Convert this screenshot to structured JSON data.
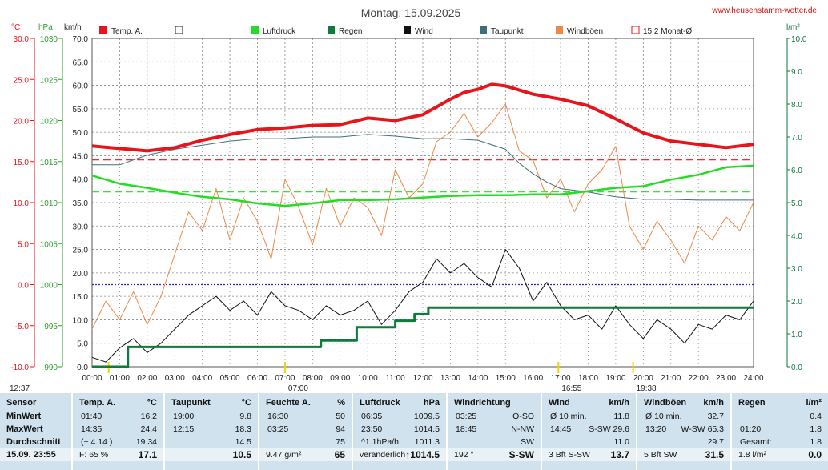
{
  "header": {
    "title": "Montag, 15.09.2025",
    "website": "www.heusenstamm-wetter.de"
  },
  "axes": {
    "temp_unit": "°C",
    "pressure_unit": "hPa",
    "speed_unit": "km/h",
    "rain_unit": "l/m²",
    "temp_ticks": [
      "30.0",
      "25.0",
      "20.0",
      "15.0",
      "10.0",
      "5.0",
      "0.0",
      "-5.0",
      "-10.0"
    ],
    "pressure_ticks": [
      "1030",
      "1025",
      "1020",
      "1015",
      "1010",
      "1005",
      "1000",
      "995",
      "990"
    ],
    "speed_ticks": [
      "70.0",
      "65.0",
      "60.0",
      "55.0",
      "50.0",
      "45.0",
      "40.0",
      "35.0",
      "30.0",
      "25.0",
      "20.0",
      "15.0",
      "10.0",
      "5.0",
      "0.0"
    ],
    "rain_ticks": [
      "10.0",
      "9.0",
      "8.0",
      "7.0",
      "6.0",
      "5.0",
      "4.0",
      "3.0",
      "2.0",
      "1.0",
      "0.0"
    ],
    "time_ticks": [
      "00:00",
      "01:00",
      "02:00",
      "03:00",
      "04:00",
      "05:00",
      "06:00",
      "07:00",
      "08:00",
      "09:00",
      "10:00",
      "11:00",
      "12:00",
      "13:00",
      "14:00",
      "15:00",
      "16:00",
      "17:00",
      "18:00",
      "19:00",
      "20:00",
      "21:00",
      "22:00",
      "23:00",
      "24:00"
    ],
    "markers": [
      {
        "label": "12:37",
        "time": 0.6
      },
      {
        "label": "07:00",
        "time": 7.0
      },
      {
        "label": "16:55",
        "time": 16.92
      },
      {
        "label": "19:38",
        "time": 19.63
      }
    ]
  },
  "legend": {
    "temp": "Temp. A.",
    "box": "",
    "pressure": "Luftdruck",
    "rain": "Regen",
    "wind": "Wind",
    "dew": "Taupunkt",
    "gust": "Windböen",
    "monthavg": "15.2 Monat-Ø"
  },
  "colors": {
    "temp": "#e8141c",
    "pressure": "#22dd22",
    "rain": "#0e7a3c",
    "wind": "#111111",
    "dew": "#3d6e7a",
    "gust": "#ee8844",
    "grid": "#8a8a8a",
    "zero": "#2a2ab0",
    "temp_axis": "#e8141c",
    "pressure_axis": "#2aa02a",
    "rain_axis": "#0e7a3c"
  },
  "chart_data": {
    "type": "line",
    "title": "Montag, 15.09.2025",
    "x_unit": "hour",
    "temp_range": [
      -10,
      30
    ],
    "pressure_range": [
      990,
      1030
    ],
    "speed_range": [
      0,
      70
    ],
    "rain_range": [
      0,
      10
    ],
    "reference_lines": [
      {
        "name": "15.2 Monat-Ø",
        "axis": "temp",
        "value": 15.2
      },
      {
        "axis": "pressure",
        "value": 1011.3
      },
      {
        "axis": "temp",
        "value": 0.0
      }
    ],
    "series": [
      {
        "name": "Temp. A.",
        "axis": "temp",
        "x": [
          0,
          1,
          2,
          3,
          4,
          5,
          6,
          7,
          8,
          9,
          10,
          11,
          12,
          13,
          13.5,
          14,
          14.5,
          15,
          15.5,
          16,
          17,
          18,
          19,
          20,
          21,
          22,
          23,
          24
        ],
        "y": [
          16.9,
          16.6,
          16.3,
          16.7,
          17.6,
          18.3,
          18.9,
          19.1,
          19.4,
          19.5,
          20.3,
          20.0,
          20.7,
          22.6,
          23.4,
          23.8,
          24.4,
          24.2,
          23.7,
          23.2,
          22.6,
          21.8,
          20.2,
          18.5,
          17.5,
          17.1,
          16.7,
          17.1
        ]
      },
      {
        "name": "Taupunkt",
        "axis": "temp",
        "x": [
          0,
          1,
          2,
          3,
          4,
          5,
          6,
          7,
          8,
          9,
          10,
          11,
          12,
          13,
          14,
          15,
          15.5,
          16,
          16.5,
          17,
          18,
          19,
          20,
          21,
          22,
          23,
          24
        ],
        "y": [
          14.6,
          14.6,
          15.8,
          16.5,
          17.0,
          17.5,
          17.8,
          17.8,
          18.0,
          18.0,
          18.3,
          18.1,
          17.8,
          17.8,
          17.6,
          16.5,
          14.8,
          13.5,
          12.5,
          11.7,
          11.3,
          10.7,
          10.4,
          10.4,
          10.3,
          10.3,
          10.3
        ]
      },
      {
        "name": "Luftdruck",
        "axis": "pressure",
        "x": [
          0,
          1,
          2,
          3,
          4,
          5,
          6,
          7,
          8,
          9,
          10,
          11,
          12,
          13,
          14,
          15,
          16,
          17,
          18,
          19,
          20,
          21,
          22,
          23,
          24
        ],
        "y": [
          1013.3,
          1012.3,
          1011.8,
          1011.2,
          1010.7,
          1010.4,
          1009.9,
          1009.6,
          1009.9,
          1010.3,
          1010.3,
          1010.4,
          1010.6,
          1010.8,
          1010.9,
          1010.9,
          1011.0,
          1011.0,
          1011.4,
          1011.8,
          1012.0,
          1012.8,
          1013.4,
          1014.3,
          1014.5
        ]
      },
      {
        "name": "Regen",
        "axis": "rain",
        "x": [
          0,
          1.05,
          1.3,
          3.7,
          7.8,
          8.3,
          9.6,
          11,
          11.6,
          11.7,
          12.2,
          24
        ],
        "y": [
          0,
          0,
          0.6,
          0.6,
          0.6,
          0.8,
          1.2,
          1.4,
          1.4,
          1.6,
          1.8,
          1.8
        ]
      },
      {
        "name": "Wind",
        "axis": "speed",
        "x": [
          0,
          0.5,
          1,
          1.5,
          2,
          2.5,
          3,
          3.5,
          4,
          4.5,
          5,
          5.5,
          6,
          6.5,
          7,
          7.5,
          8,
          8.5,
          9,
          9.5,
          10,
          10.5,
          11,
          11.5,
          12,
          12.5,
          13,
          13.5,
          14,
          14.5,
          15,
          15.5,
          16,
          16.5,
          17,
          17.5,
          18,
          18.5,
          19,
          19.5,
          20,
          20.5,
          21,
          21.5,
          22,
          22.5,
          23,
          23.5,
          24
        ],
        "y": [
          2,
          1,
          4,
          6,
          3,
          5,
          8,
          11,
          13,
          15,
          12,
          14,
          11,
          16,
          13,
          12,
          10,
          13,
          11,
          12,
          14,
          9,
          12,
          16,
          18,
          23,
          20,
          22,
          19,
          17,
          25,
          21,
          14,
          18,
          13,
          10,
          11,
          8,
          13,
          9,
          6,
          10,
          8,
          5,
          9,
          8,
          11,
          10,
          14
        ]
      },
      {
        "name": "Windböen",
        "axis": "speed",
        "x": [
          0,
          0.5,
          1,
          1.5,
          2,
          2.5,
          3,
          3.5,
          4,
          4.5,
          5,
          5.5,
          6,
          6.5,
          7,
          7.5,
          8,
          8.5,
          9,
          9.5,
          10,
          10.5,
          11,
          11.5,
          12,
          12.5,
          13,
          13.5,
          14,
          14.5,
          15,
          15.5,
          16,
          16.5,
          17,
          17.5,
          18,
          18.5,
          19,
          19.5,
          20,
          20.5,
          21,
          21.5,
          22,
          22.5,
          23,
          23.5,
          24
        ],
        "y": [
          8,
          14,
          10,
          16,
          9,
          15,
          24,
          33,
          29,
          38,
          27,
          36,
          31,
          23,
          40,
          34,
          26,
          38,
          30,
          36,
          34,
          28,
          42,
          36,
          39,
          48,
          50,
          54,
          49,
          52,
          56,
          46,
          44,
          36,
          40,
          33,
          39,
          42,
          47,
          30,
          25,
          31,
          27,
          22,
          30,
          27,
          32,
          29,
          35
        ]
      }
    ]
  },
  "panel": {
    "sensor": {
      "header": "Sensor",
      "rows": [
        "MinWert",
        "MaxWert",
        "Durchschnitt",
        "15.09. 23:55"
      ]
    },
    "temp": {
      "header": "Temp. A.",
      "unit": "°C",
      "rows": [
        [
          "01:40",
          "16.2"
        ],
        [
          "14:35",
          "24.4"
        ],
        [
          "(+ 4.14 )",
          "19.34"
        ],
        [
          "F: 65 %",
          "17.1"
        ]
      ]
    },
    "dew": {
      "header": "Taupunkt",
      "unit": "°C",
      "rows": [
        [
          "19:00",
          "9.8"
        ],
        [
          "12:15",
          "18.3"
        ],
        [
          "",
          "14.5"
        ],
        [
          "",
          "10.5"
        ]
      ]
    },
    "humidity": {
      "header": "Feuchte A.",
      "unit": "%",
      "rows": [
        [
          "16:30",
          "50"
        ],
        [
          "03:25",
          "94"
        ],
        [
          "",
          "75"
        ],
        [
          "9.47 g/m²",
          "65"
        ]
      ]
    },
    "pressure": {
      "header": "Luftdruck",
      "unit": "hPa",
      "rows": [
        [
          "06:35",
          "1009.5"
        ],
        [
          "23:50",
          "1014.5"
        ],
        [
          "^1.1hPa/h",
          "1011.3"
        ],
        [
          "veränderlich",
          "↑1014.5"
        ]
      ]
    },
    "direction": {
      "header": "Windrichtung",
      "unit": "",
      "rows": [
        [
          "03:25",
          "O-SO"
        ],
        [
          "18:45",
          "N-NW"
        ],
        [
          "",
          "SW"
        ],
        [
          "192 °",
          "S-SW"
        ]
      ]
    },
    "wind": {
      "header": "Wind",
      "unit": "km/h",
      "rows": [
        [
          "Ø 10 min.",
          "11.8"
        ],
        [
          "14:45",
          "S-SW 29.6"
        ],
        [
          "",
          "11.0"
        ],
        [
          "3 Bft S-SW",
          "13.7"
        ]
      ]
    },
    "gust": {
      "header": "Windböen",
      "unit": "km/h",
      "rows": [
        [
          "Ø 10 min.",
          "32.7"
        ],
        [
          "13:20",
          "W-SW 65.3"
        ],
        [
          "",
          "29.7"
        ],
        [
          "5 Bft SW",
          "31.5"
        ]
      ]
    },
    "rain": {
      "header": "Regen",
      "unit": "l/m²",
      "rows": [
        [
          "",
          "0.4"
        ],
        [
          "01:20",
          "1.8"
        ],
        [
          "Gesamt:",
          "1.8"
        ],
        [
          "1.8 l/m²",
          "0.0"
        ]
      ]
    }
  }
}
